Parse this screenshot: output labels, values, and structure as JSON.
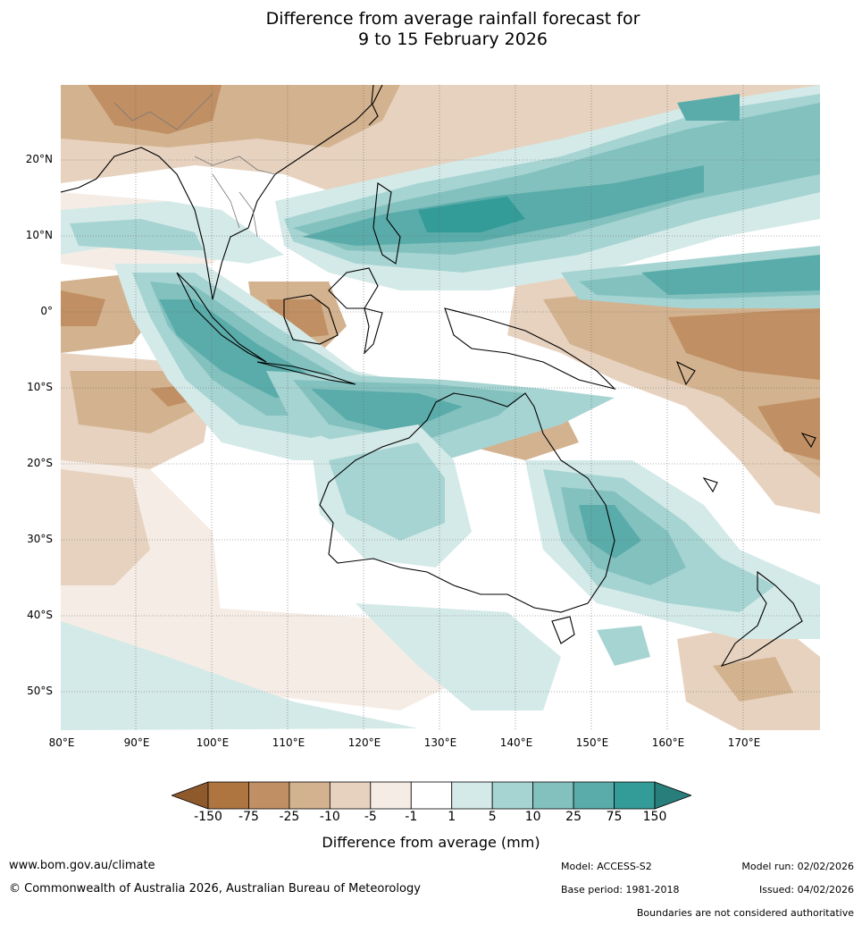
{
  "title_line1": "Difference from average rainfall forecast for",
  "title_line2": "9 to 15 February 2026",
  "lat_labels": [
    "20°N",
    "10°N",
    "0°",
    "10°S",
    "20°S",
    "30°S",
    "40°S",
    "50°S"
  ],
  "lon_labels": [
    "80°E",
    "90°E",
    "100°E",
    "110°E",
    "120°E",
    "130°E",
    "140°E",
    "150°E",
    "160°E",
    "170°E"
  ],
  "legend": {
    "ticks": [
      "-150",
      "-75",
      "-25",
      "-10",
      "-5",
      "-1",
      "1",
      "5",
      "10",
      "25",
      "75",
      "150"
    ],
    "colors": [
      "#8e5a2c",
      "#ae7541",
      "#c09064",
      "#d3b28f",
      "#e7d2bf",
      "#f5ece5",
      "#ffffff",
      "#d4eae8",
      "#a6d4d2",
      "#83c1bf",
      "#5aacaa",
      "#339b98",
      "#287e7b"
    ],
    "label": "Difference from average (mm)"
  },
  "footer": {
    "url": "www.bom.gov.au/climate",
    "copyright": "© Commonwealth of Australia 2026, Australian Bureau of Meteorology",
    "model": "Model: ACCESS-S2",
    "base_period": "Base period: 1981-2018",
    "model_run": "Model run: 02/02/2026",
    "issued": "Issued: 04/02/2026",
    "boundaries": "Boundaries are not considered authoritative"
  }
}
